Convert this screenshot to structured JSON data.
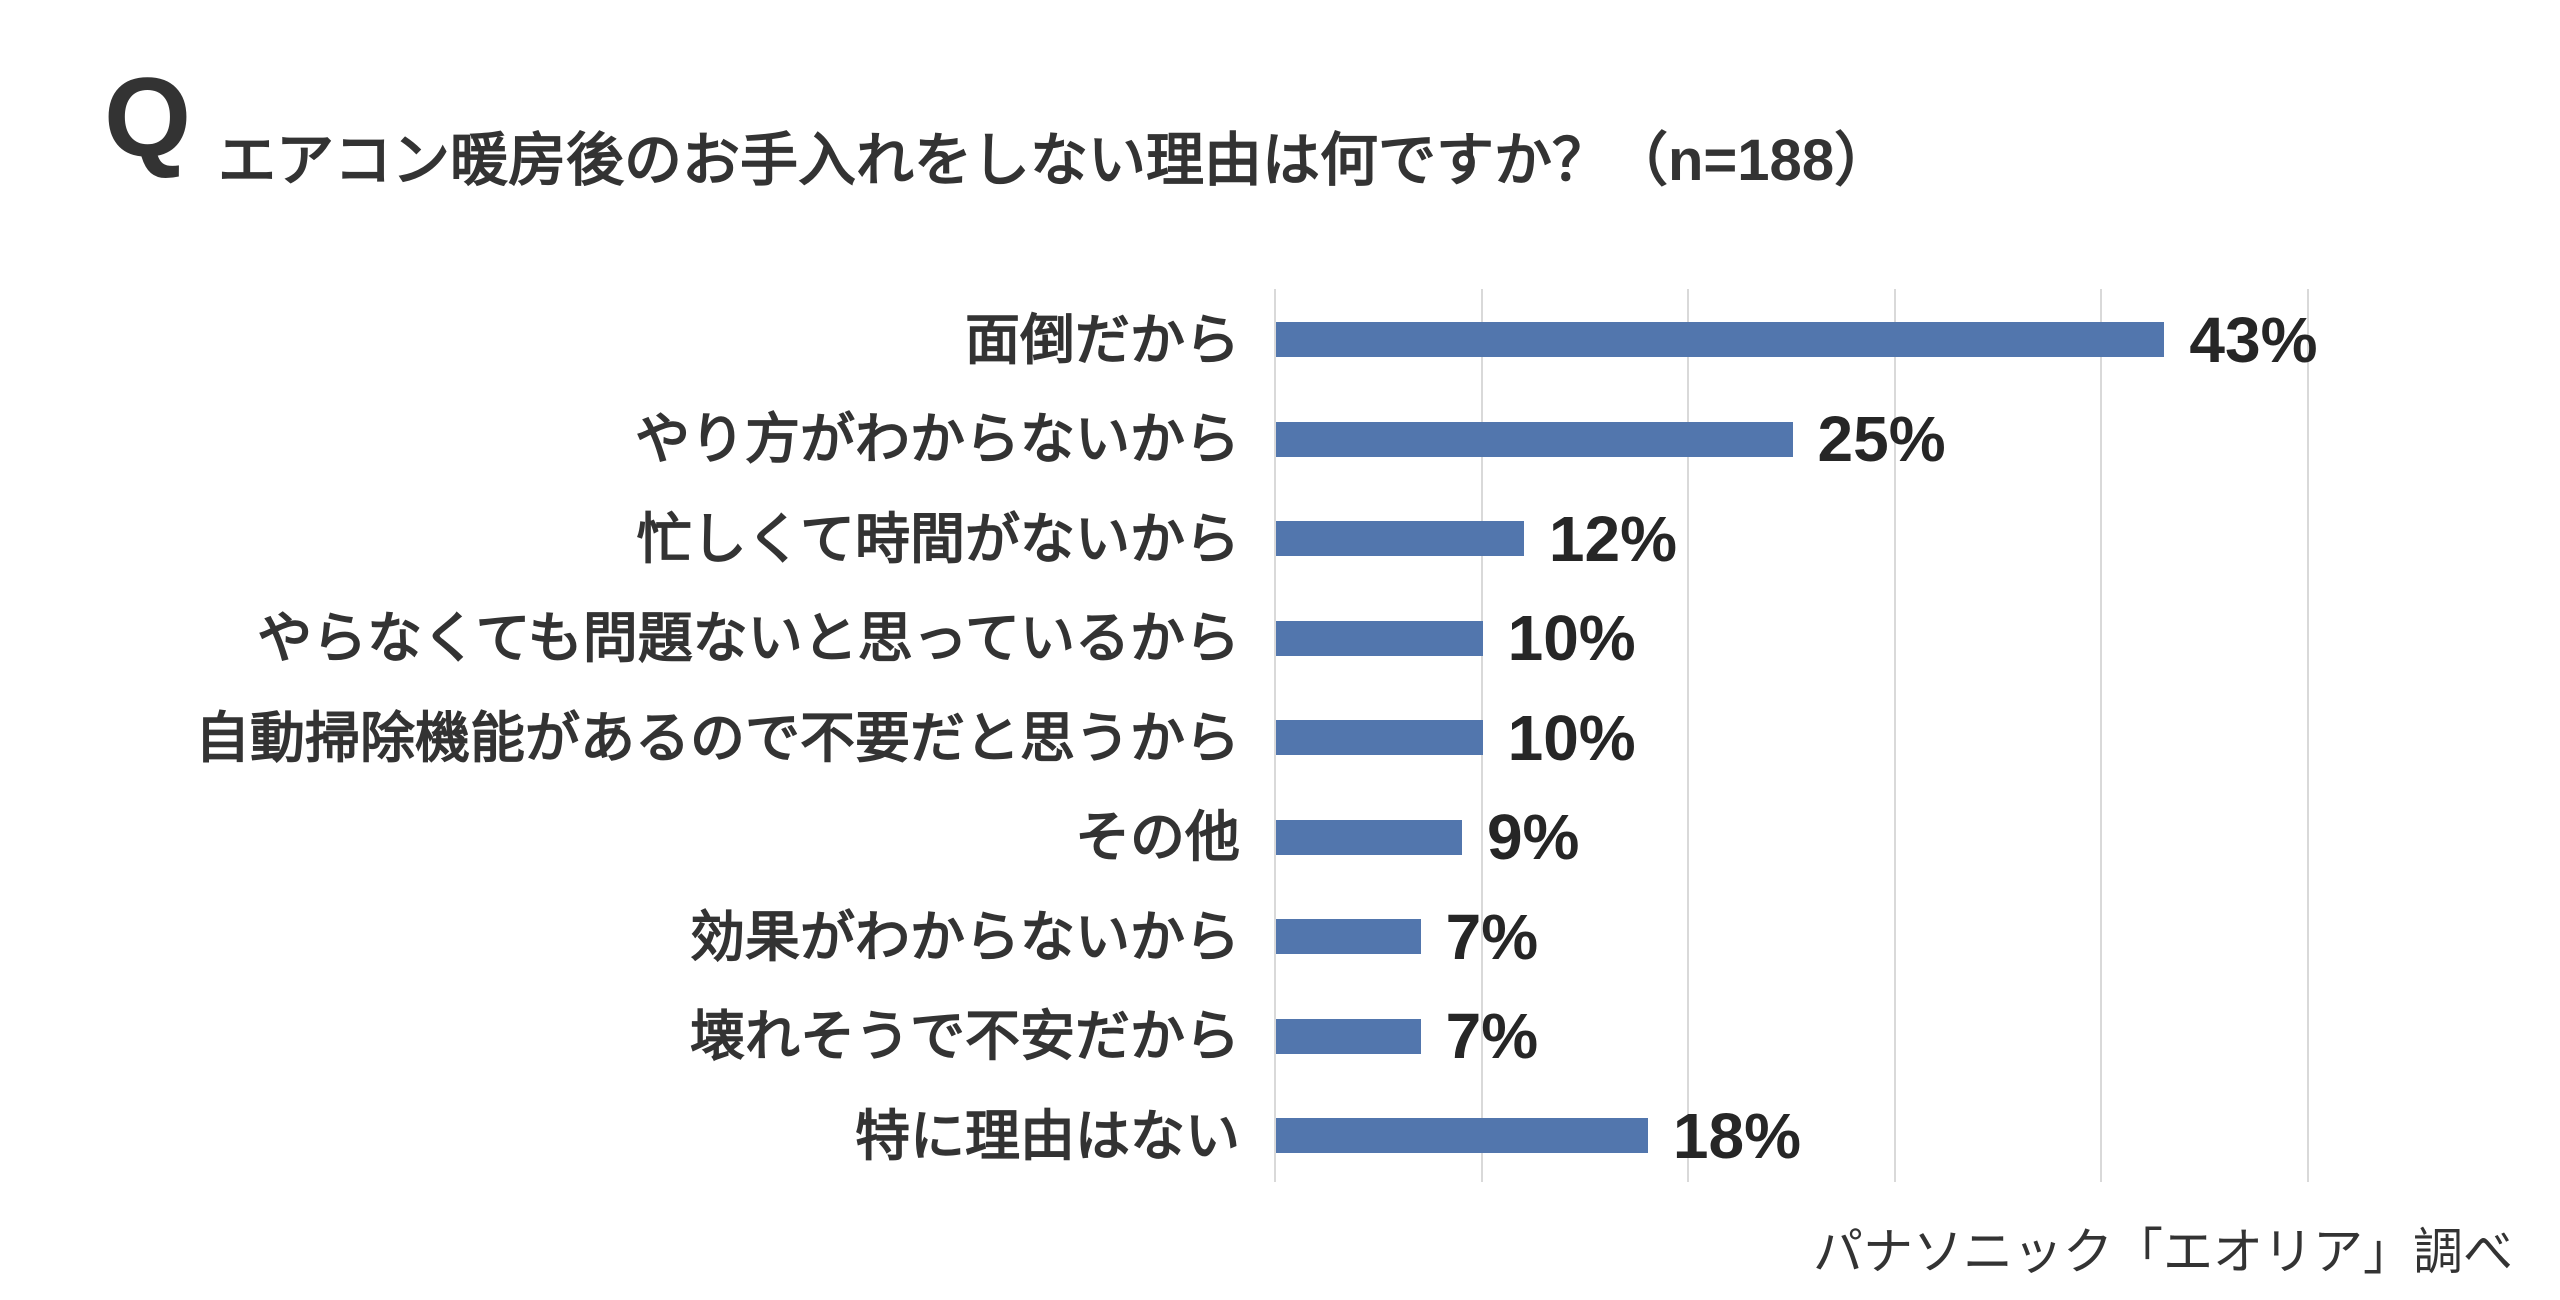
{
  "header": {
    "q_mark": "Q",
    "title": "エアコン暖房後のお手入れをしない理由は何ですか？（n=188）"
  },
  "footer": {
    "source": "パナソニック「エオリア」調べ"
  },
  "colors": {
    "bar": "#5276AD",
    "gridline": "#D9D9D9",
    "text": "#333333"
  },
  "chart_data": {
    "type": "bar",
    "orientation": "horizontal",
    "title": "エアコン暖房後のお手入れをしない理由は何ですか？（n=188）",
    "categories": [
      "面倒だから",
      "やり方がわからないから",
      "忙しくて時間がないから",
      "やらなくても問題ないと思っているから",
      "自動掃除機能があるので不要だと思うから",
      "その他",
      "効果がわからないから",
      "壊れそうで不安だから",
      "特に理由はない"
    ],
    "values": [
      43,
      25,
      12,
      10,
      10,
      9,
      7,
      7,
      18
    ],
    "value_labels": [
      "43%",
      "25%",
      "12%",
      "10%",
      "10%",
      "9%",
      "7%",
      "7%",
      "18%"
    ],
    "value_suffix": "%",
    "xlim": [
      0,
      50
    ],
    "gridline_step": 10,
    "grid": "vertical-only",
    "axis_tick_labels_visible": false,
    "legend": "none"
  }
}
